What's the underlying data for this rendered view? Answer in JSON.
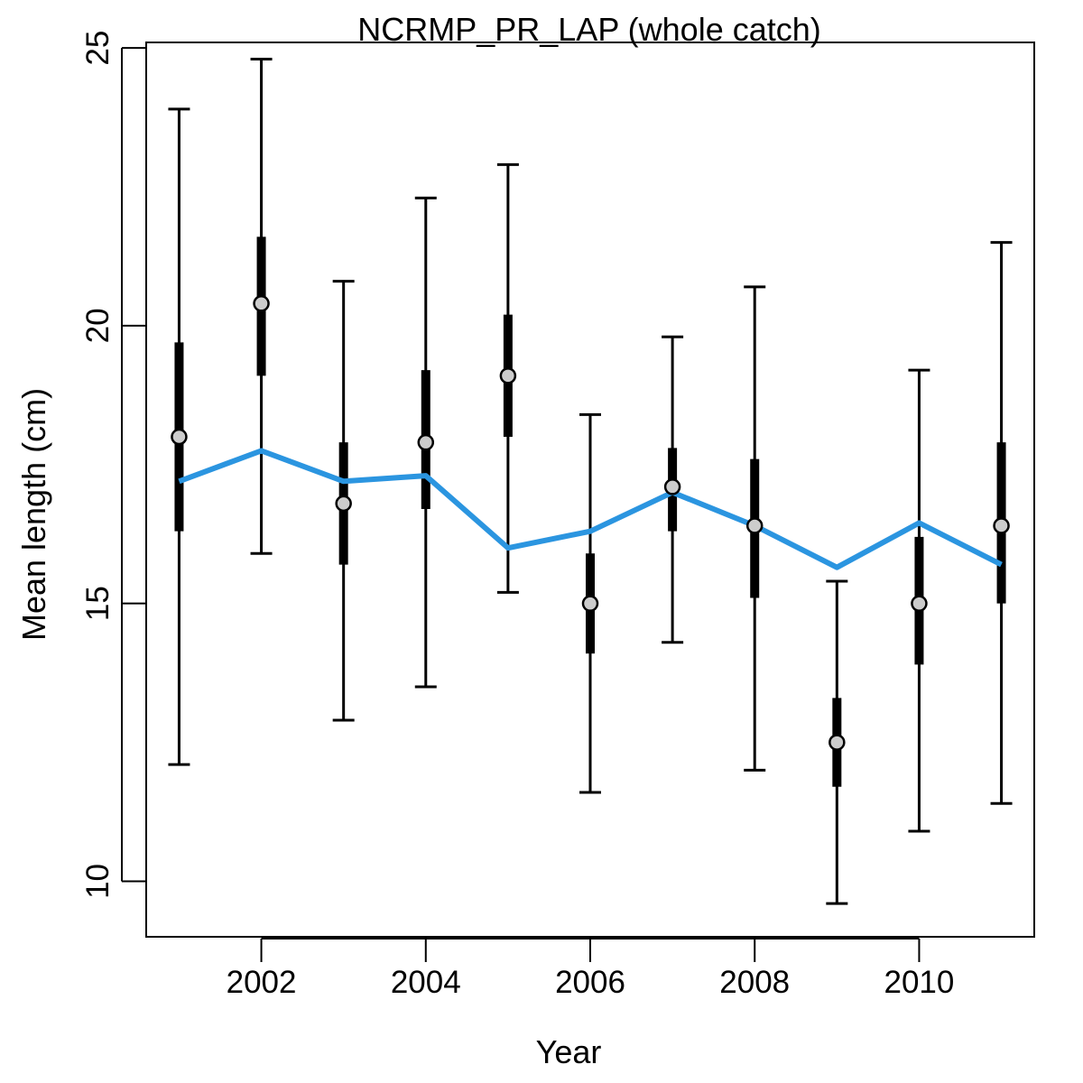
{
  "chart_data": {
    "type": "scatter",
    "title": "NCRMP_PR_LAP (whole catch)",
    "xlabel": "Year",
    "ylabel": "Mean length (cm)",
    "xlim": [
      2000.6,
      2011.4
    ],
    "ylim": [
      9.0,
      25.1
    ],
    "x_ticks": [
      2002,
      2004,
      2006,
      2008,
      2010
    ],
    "y_ticks": [
      10,
      15,
      20,
      25
    ],
    "grid": false,
    "legend": "none",
    "colors": {
      "observed_point_fill": "#cccccc",
      "observed_point_stroke": "#000000",
      "error_bars": "#000000",
      "expected_line": "#2b95e0"
    },
    "series": [
      {
        "kind": "observed-with-intervals",
        "points": [
          {
            "x": 2001,
            "y": 18.0,
            "inner": [
              16.3,
              19.7
            ],
            "outer": [
              12.1,
              23.9
            ]
          },
          {
            "x": 2002,
            "y": 20.4,
            "inner": [
              19.1,
              21.6
            ],
            "outer": [
              15.9,
              24.8
            ]
          },
          {
            "x": 2003,
            "y": 16.8,
            "inner": [
              15.7,
              17.9
            ],
            "outer": [
              12.9,
              20.8
            ]
          },
          {
            "x": 2004,
            "y": 17.9,
            "inner": [
              16.7,
              19.2
            ],
            "outer": [
              13.5,
              22.3
            ]
          },
          {
            "x": 2005,
            "y": 19.1,
            "inner": [
              18.0,
              20.2
            ],
            "outer": [
              15.2,
              22.9
            ]
          },
          {
            "x": 2006,
            "y": 15.0,
            "inner": [
              14.1,
              15.9
            ],
            "outer": [
              11.6,
              18.4
            ]
          },
          {
            "x": 2007,
            "y": 17.1,
            "inner": [
              16.3,
              17.8
            ],
            "outer": [
              14.3,
              19.8
            ]
          },
          {
            "x": 2008,
            "y": 16.4,
            "inner": [
              15.1,
              17.6
            ],
            "outer": [
              12.0,
              20.7
            ]
          },
          {
            "x": 2009,
            "y": 12.5,
            "inner": [
              11.7,
              13.3
            ],
            "outer": [
              9.6,
              15.4
            ]
          },
          {
            "x": 2010,
            "y": 15.0,
            "inner": [
              13.9,
              16.2
            ],
            "outer": [
              10.9,
              19.2
            ]
          },
          {
            "x": 2011,
            "y": 16.4,
            "inner": [
              15.0,
              17.9
            ],
            "outer": [
              11.4,
              21.5
            ]
          }
        ]
      },
      {
        "kind": "expected-line",
        "x": [
          2001,
          2002,
          2003,
          2004,
          2005,
          2006,
          2007,
          2008,
          2009,
          2010,
          2011
        ],
        "values": [
          17.2,
          17.75,
          17.2,
          17.3,
          16.0,
          16.3,
          17.0,
          16.4,
          15.65,
          16.45,
          15.7
        ]
      }
    ]
  }
}
